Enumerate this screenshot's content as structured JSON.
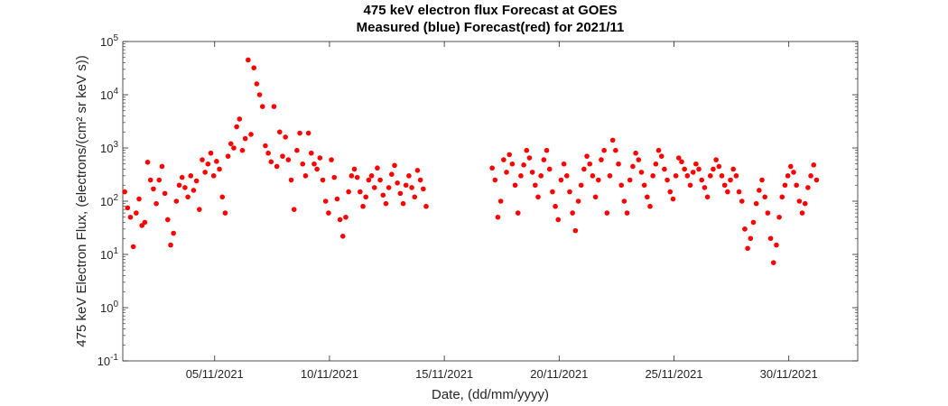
{
  "chart_data": {
    "type": "scatter",
    "title": "475 keV electron flux Forecast at GOES",
    "subtitle": "Measured (blue) Forecast(red) for 2021/11",
    "xlabel": "Date, (dd/mm/yyyy)",
    "ylabel": "475 keV Electron Flux, (electrons/(cm² sr keV s))",
    "y_scale": "log",
    "xlim": [
      "2021-11-01",
      "2021-12-03"
    ],
    "ylim": [
      0.1,
      100000
    ],
    "x_ticks": [
      "05/11/2021",
      "10/11/2021",
      "15/11/2021",
      "20/11/2021",
      "25/11/2021",
      "30/11/2021"
    ],
    "y_ticks": [
      {
        "value": 0.1,
        "base": "10",
        "exp": "-1"
      },
      {
        "value": 1,
        "base": "10",
        "exp": "0"
      },
      {
        "value": 10,
        "base": "10",
        "exp": "1"
      },
      {
        "value": 100,
        "base": "10",
        "exp": "2"
      },
      {
        "value": 1000,
        "base": "10",
        "exp": "3"
      },
      {
        "value": 10000,
        "base": "10",
        "exp": "4"
      },
      {
        "value": 100000,
        "base": "10",
        "exp": "5"
      }
    ],
    "grid": false,
    "series": [
      {
        "color": "#ff0000",
        "points": [
          {
            "x": "2021-11-01T02:00",
            "y": 150
          },
          {
            "x": "2021-11-01T05:00",
            "y": 75
          },
          {
            "x": "2021-11-01T08:00",
            "y": 50
          },
          {
            "x": "2021-11-01T11:00",
            "y": 14
          },
          {
            "x": "2021-11-01T14:00",
            "y": 60
          },
          {
            "x": "2021-11-01T17:00",
            "y": 110
          },
          {
            "x": "2021-11-01T20:00",
            "y": 35
          },
          {
            "x": "2021-11-01T23:00",
            "y": 40
          },
          {
            "x": "2021-11-02T02:00",
            "y": 540
          },
          {
            "x": "2021-11-02T05:00",
            "y": 250
          },
          {
            "x": "2021-11-02T08:00",
            "y": 170
          },
          {
            "x": "2021-11-02T11:00",
            "y": 90
          },
          {
            "x": "2021-11-02T14:00",
            "y": 250
          },
          {
            "x": "2021-11-02T17:00",
            "y": 450
          },
          {
            "x": "2021-11-02T20:00",
            "y": 140
          },
          {
            "x": "2021-11-02T23:00",
            "y": 45
          },
          {
            "x": "2021-11-03T02:00",
            "y": 15
          },
          {
            "x": "2021-11-03T05:00",
            "y": 25
          },
          {
            "x": "2021-11-03T08:00",
            "y": 100
          },
          {
            "x": "2021-11-03T11:00",
            "y": 200
          },
          {
            "x": "2021-11-03T14:00",
            "y": 280
          },
          {
            "x": "2021-11-03T17:00",
            "y": 180
          },
          {
            "x": "2021-11-03T20:00",
            "y": 120
          },
          {
            "x": "2021-11-03T23:00",
            "y": 300
          },
          {
            "x": "2021-11-04T02:00",
            "y": 160
          },
          {
            "x": "2021-11-04T05:00",
            "y": 240
          },
          {
            "x": "2021-11-04T08:00",
            "y": 70
          },
          {
            "x": "2021-11-04T11:00",
            "y": 600
          },
          {
            "x": "2021-11-04T14:00",
            "y": 350
          },
          {
            "x": "2021-11-04T17:00",
            "y": 500
          },
          {
            "x": "2021-11-04T20:00",
            "y": 800
          },
          {
            "x": "2021-11-04T23:00",
            "y": 300
          },
          {
            "x": "2021-11-05T02:00",
            "y": 560
          },
          {
            "x": "2021-11-05T05:00",
            "y": 400
          },
          {
            "x": "2021-11-05T08:00",
            "y": 120
          },
          {
            "x": "2021-11-05T11:00",
            "y": 60
          },
          {
            "x": "2021-11-05T14:00",
            "y": 700
          },
          {
            "x": "2021-11-05T17:00",
            "y": 1200
          },
          {
            "x": "2021-11-05T20:00",
            "y": 1000
          },
          {
            "x": "2021-11-05T23:00",
            "y": 2500
          },
          {
            "x": "2021-11-06T02:00",
            "y": 3500
          },
          {
            "x": "2021-11-06T05:00",
            "y": 900
          },
          {
            "x": "2021-11-06T08:00",
            "y": 1500
          },
          {
            "x": "2021-11-06T11:00",
            "y": 45000
          },
          {
            "x": "2021-11-06T14:00",
            "y": 1800
          },
          {
            "x": "2021-11-06T17:00",
            "y": 32000
          },
          {
            "x": "2021-11-06T20:00",
            "y": 16000
          },
          {
            "x": "2021-11-06T23:00",
            "y": 10000
          },
          {
            "x": "2021-11-07T02:00",
            "y": 6000
          },
          {
            "x": "2021-11-07T05:00",
            "y": 1100
          },
          {
            "x": "2021-11-07T08:00",
            "y": 800
          },
          {
            "x": "2021-11-07T11:00",
            "y": 550
          },
          {
            "x": "2021-11-07T14:00",
            "y": 6000
          },
          {
            "x": "2021-11-07T17:00",
            "y": 450
          },
          {
            "x": "2021-11-07T20:00",
            "y": 2000
          },
          {
            "x": "2021-11-07T23:00",
            "y": 700
          },
          {
            "x": "2021-11-08T02:00",
            "y": 1600
          },
          {
            "x": "2021-11-08T05:00",
            "y": 600
          },
          {
            "x": "2021-11-08T08:00",
            "y": 250
          },
          {
            "x": "2021-11-08T11:00",
            "y": 70
          },
          {
            "x": "2021-11-08T14:00",
            "y": 900
          },
          {
            "x": "2021-11-08T17:00",
            "y": 1900
          },
          {
            "x": "2021-11-08T20:00",
            "y": 500
          },
          {
            "x": "2021-11-08T23:00",
            "y": 300
          },
          {
            "x": "2021-11-09T02:00",
            "y": 1900
          },
          {
            "x": "2021-11-09T05:00",
            "y": 800
          },
          {
            "x": "2021-11-09T08:00",
            "y": 500
          },
          {
            "x": "2021-11-09T11:00",
            "y": 400
          },
          {
            "x": "2021-11-09T14:00",
            "y": 650
          },
          {
            "x": "2021-11-09T17:00",
            "y": 250
          },
          {
            "x": "2021-11-09T20:00",
            "y": 100
          },
          {
            "x": "2021-11-09T23:00",
            "y": 60
          },
          {
            "x": "2021-11-10T02:00",
            "y": 600
          },
          {
            "x": "2021-11-10T05:00",
            "y": 280
          },
          {
            "x": "2021-11-10T08:00",
            "y": 110
          },
          {
            "x": "2021-11-10T11:00",
            "y": 45
          },
          {
            "x": "2021-11-10T14:00",
            "y": 22
          },
          {
            "x": "2021-11-10T17:00",
            "y": 50
          },
          {
            "x": "2021-11-10T20:00",
            "y": 150
          },
          {
            "x": "2021-11-10T23:00",
            "y": 300
          },
          {
            "x": "2021-11-11T02:00",
            "y": 400
          },
          {
            "x": "2021-11-11T05:00",
            "y": 280
          },
          {
            "x": "2021-11-11T08:00",
            "y": 150
          },
          {
            "x": "2021-11-11T11:00",
            "y": 80
          },
          {
            "x": "2021-11-11T14:00",
            "y": 120
          },
          {
            "x": "2021-11-11T17:00",
            "y": 250
          },
          {
            "x": "2021-11-11T20:00",
            "y": 300
          },
          {
            "x": "2021-11-11T23:00",
            "y": 180
          },
          {
            "x": "2021-11-12T02:00",
            "y": 420
          },
          {
            "x": "2021-11-12T05:00",
            "y": 250
          },
          {
            "x": "2021-11-12T08:00",
            "y": 130
          },
          {
            "x": "2021-11-12T11:00",
            "y": 90
          },
          {
            "x": "2021-11-12T14:00",
            "y": 180
          },
          {
            "x": "2021-11-12T17:00",
            "y": 320
          },
          {
            "x": "2021-11-12T20:00",
            "y": 470
          },
          {
            "x": "2021-11-12T23:00",
            "y": 220
          },
          {
            "x": "2021-11-13T02:00",
            "y": 140
          },
          {
            "x": "2021-11-13T05:00",
            "y": 90
          },
          {
            "x": "2021-11-13T08:00",
            "y": 200
          },
          {
            "x": "2021-11-13T11:00",
            "y": 300
          },
          {
            "x": "2021-11-13T14:00",
            "y": 180
          },
          {
            "x": "2021-11-13T17:00",
            "y": 120
          },
          {
            "x": "2021-11-13T20:00",
            "y": 380
          },
          {
            "x": "2021-11-13T23:00",
            "y": 250
          },
          {
            "x": "2021-11-14T02:00",
            "y": 170
          },
          {
            "x": "2021-11-14T05:00",
            "y": 80
          },
          {
            "x": "2021-11-17T02:00",
            "y": 420
          },
          {
            "x": "2021-11-17T05:00",
            "y": 250
          },
          {
            "x": "2021-11-17T08:00",
            "y": 50
          },
          {
            "x": "2021-11-17T11:00",
            "y": 100
          },
          {
            "x": "2021-11-17T14:00",
            "y": 600
          },
          {
            "x": "2021-11-17T17:00",
            "y": 350
          },
          {
            "x": "2021-11-17T20:00",
            "y": 750
          },
          {
            "x": "2021-11-17T23:00",
            "y": 500
          },
          {
            "x": "2021-11-18T02:00",
            "y": 200
          },
          {
            "x": "2021-11-18T05:00",
            "y": 60
          },
          {
            "x": "2021-11-18T08:00",
            "y": 300
          },
          {
            "x": "2021-11-18T11:00",
            "y": 480
          },
          {
            "x": "2021-11-18T14:00",
            "y": 900
          },
          {
            "x": "2021-11-18T17:00",
            "y": 650
          },
          {
            "x": "2021-11-18T20:00",
            "y": 350
          },
          {
            "x": "2021-11-18T23:00",
            "y": 200
          },
          {
            "x": "2021-11-19T02:00",
            "y": 120
          },
          {
            "x": "2021-11-19T05:00",
            "y": 300
          },
          {
            "x": "2021-11-19T08:00",
            "y": 600
          },
          {
            "x": "2021-11-19T11:00",
            "y": 900
          },
          {
            "x": "2021-11-19T14:00",
            "y": 400
          },
          {
            "x": "2021-11-19T17:00",
            "y": 150
          },
          {
            "x": "2021-11-19T20:00",
            "y": 80
          },
          {
            "x": "2021-11-19T23:00",
            "y": 45
          },
          {
            "x": "2021-11-20T02:00",
            "y": 250
          },
          {
            "x": "2021-11-20T05:00",
            "y": 500
          },
          {
            "x": "2021-11-20T08:00",
            "y": 300
          },
          {
            "x": "2021-11-20T11:00",
            "y": 150
          },
          {
            "x": "2021-11-20T14:00",
            "y": 60
          },
          {
            "x": "2021-11-20T17:00",
            "y": 28
          },
          {
            "x": "2021-11-20T20:00",
            "y": 100
          },
          {
            "x": "2021-11-20T23:00",
            "y": 200
          },
          {
            "x": "2021-11-21T02:00",
            "y": 400
          },
          {
            "x": "2021-11-21T05:00",
            "y": 700
          },
          {
            "x": "2021-11-21T08:00",
            "y": 500
          },
          {
            "x": "2021-11-21T11:00",
            "y": 300
          },
          {
            "x": "2021-11-21T14:00",
            "y": 120
          },
          {
            "x": "2021-11-21T17:00",
            "y": 250
          },
          {
            "x": "2021-11-21T20:00",
            "y": 600
          },
          {
            "x": "2021-11-21T23:00",
            "y": 900
          },
          {
            "x": "2021-11-22T02:00",
            "y": 60
          },
          {
            "x": "2021-11-22T05:00",
            "y": 300
          },
          {
            "x": "2021-11-22T08:00",
            "y": 1400
          },
          {
            "x": "2021-11-22T11:00",
            "y": 900
          },
          {
            "x": "2021-11-22T14:00",
            "y": 500
          },
          {
            "x": "2021-11-22T17:00",
            "y": 200
          },
          {
            "x": "2021-11-22T20:00",
            "y": 100
          },
          {
            "x": "2021-11-22T23:00",
            "y": 60
          },
          {
            "x": "2021-11-23T02:00",
            "y": 250
          },
          {
            "x": "2021-11-23T05:00",
            "y": 450
          },
          {
            "x": "2021-11-23T08:00",
            "y": 800
          },
          {
            "x": "2021-11-23T11:00",
            "y": 600
          },
          {
            "x": "2021-11-23T14:00",
            "y": 350
          },
          {
            "x": "2021-11-23T17:00",
            "y": 200
          },
          {
            "x": "2021-11-23T20:00",
            "y": 120
          },
          {
            "x": "2021-11-23T23:00",
            "y": 80
          },
          {
            "x": "2021-11-24T02:00",
            "y": 300
          },
          {
            "x": "2021-11-24T05:00",
            "y": 500
          },
          {
            "x": "2021-11-24T08:00",
            "y": 900
          },
          {
            "x": "2021-11-24T11:00",
            "y": 700
          },
          {
            "x": "2021-11-24T14:00",
            "y": 400
          },
          {
            "x": "2021-11-24T17:00",
            "y": 250
          },
          {
            "x": "2021-11-24T20:00",
            "y": 150
          },
          {
            "x": "2021-11-24T23:00",
            "y": 110
          },
          {
            "x": "2021-11-25T02:00",
            "y": 300
          },
          {
            "x": "2021-11-25T05:00",
            "y": 650
          },
          {
            "x": "2021-11-25T08:00",
            "y": 550
          },
          {
            "x": "2021-11-25T11:00",
            "y": 400
          },
          {
            "x": "2021-11-25T14:00",
            "y": 300
          },
          {
            "x": "2021-11-25T17:00",
            "y": 200
          },
          {
            "x": "2021-11-25T20:00",
            "y": 350
          },
          {
            "x": "2021-11-25T23:00",
            "y": 500
          },
          {
            "x": "2021-11-26T02:00",
            "y": 400
          },
          {
            "x": "2021-11-26T05:00",
            "y": 250
          },
          {
            "x": "2021-11-26T08:00",
            "y": 180
          },
          {
            "x": "2021-11-26T11:00",
            "y": 120
          },
          {
            "x": "2021-11-26T14:00",
            "y": 300
          },
          {
            "x": "2021-11-26T17:00",
            "y": 400
          },
          {
            "x": "2021-11-26T20:00",
            "y": 600
          },
          {
            "x": "2021-11-26T23:00",
            "y": 450
          },
          {
            "x": "2021-11-27T02:00",
            "y": 300
          },
          {
            "x": "2021-11-27T05:00",
            "y": 200
          },
          {
            "x": "2021-11-27T08:00",
            "y": 150
          },
          {
            "x": "2021-11-27T11:00",
            "y": 250
          },
          {
            "x": "2021-11-27T14:00",
            "y": 400
          },
          {
            "x": "2021-11-27T17:00",
            "y": 300
          },
          {
            "x": "2021-11-27T20:00",
            "y": 150
          },
          {
            "x": "2021-11-27T23:00",
            "y": 100
          },
          {
            "x": "2021-11-28T02:00",
            "y": 30
          },
          {
            "x": "2021-11-28T05:00",
            "y": 13
          },
          {
            "x": "2021-11-28T08:00",
            "y": 20
          },
          {
            "x": "2021-11-28T11:00",
            "y": 40
          },
          {
            "x": "2021-11-28T14:00",
            "y": 90
          },
          {
            "x": "2021-11-28T17:00",
            "y": 160
          },
          {
            "x": "2021-11-28T20:00",
            "y": 250
          },
          {
            "x": "2021-11-28T23:00",
            "y": 120
          },
          {
            "x": "2021-11-29T02:00",
            "y": 60
          },
          {
            "x": "2021-11-29T05:00",
            "y": 20
          },
          {
            "x": "2021-11-29T08:00",
            "y": 7
          },
          {
            "x": "2021-11-29T11:00",
            "y": 15
          },
          {
            "x": "2021-11-29T14:00",
            "y": 50
          },
          {
            "x": "2021-11-29T17:00",
            "y": 120
          },
          {
            "x": "2021-11-29T20:00",
            "y": 200
          },
          {
            "x": "2021-11-29T23:00",
            "y": 300
          },
          {
            "x": "2021-11-30T02:00",
            "y": 450
          },
          {
            "x": "2021-11-30T05:00",
            "y": 350
          },
          {
            "x": "2021-11-30T08:00",
            "y": 200
          },
          {
            "x": "2021-11-30T11:00",
            "y": 100
          },
          {
            "x": "2021-11-30T14:00",
            "y": 60
          },
          {
            "x": "2021-11-30T17:00",
            "y": 90
          },
          {
            "x": "2021-11-30T20:00",
            "y": 180
          },
          {
            "x": "2021-11-30T23:00",
            "y": 300
          },
          {
            "x": "2021-12-01T02:00",
            "y": 480
          },
          {
            "x": "2021-12-01T05:00",
            "y": 250
          }
        ]
      }
    ]
  }
}
